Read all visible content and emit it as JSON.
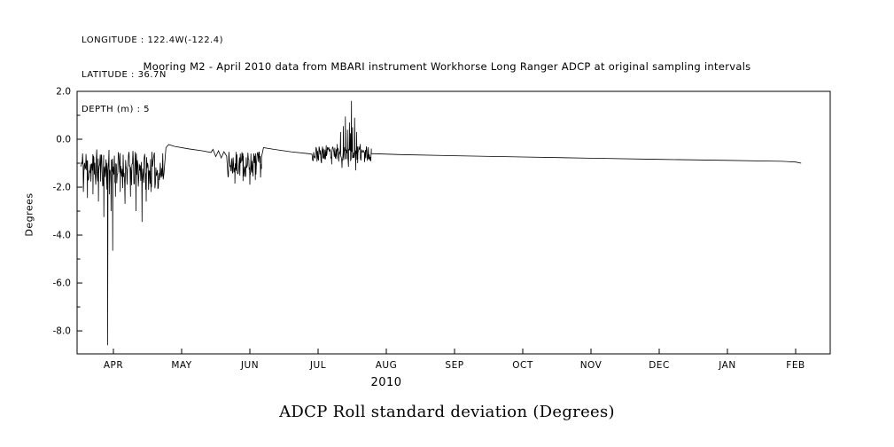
{
  "page": {
    "background": "#ffffff"
  },
  "header": {
    "longitude": "LONGITUDE : 122.4W(-122.4)",
    "latitude": "LATITUDE : 36.7N",
    "depth": "DEPTH (m) : 5"
  },
  "chart_data": {
    "type": "line",
    "title": "Mooring M2 - April 2010 data from MBARI instrument Workhorse Long Ranger ADCP at original sampling intervals",
    "caption": "ADCP Roll standard deviation (Degrees)",
    "ylabel": "Degrees",
    "year_label": "2010",
    "line_color": "#000000",
    "grid": false,
    "x_encoding": "month index, Jan 2010 = 1 through Feb 2011 = 14",
    "xlim": [
      3.4675,
      14.5065
    ],
    "ylim": [
      -8.96,
      2.0
    ],
    "xticks": {
      "values": [
        4,
        5,
        6,
        7,
        8,
        9,
        10,
        11,
        12,
        13,
        14
      ],
      "labels": [
        "APR",
        "MAY",
        "JUN",
        "JUL",
        "AUG",
        "SEP",
        "OCT",
        "NOV",
        "DEC",
        "JAN",
        "FEB"
      ]
    },
    "yticks": {
      "values": [
        2.0,
        0.0,
        -2.0,
        -4.0,
        -6.0,
        -8.0
      ],
      "labels": [
        "2.0",
        "0.0",
        "-2.0",
        "-4.0",
        "-6.0",
        "-8.0"
      ]
    },
    "y_minor_ticks": [
      1.0,
      -1.0,
      -3.0,
      -5.0,
      -7.0
    ],
    "segments": [
      {
        "type": "noise",
        "seed": 11,
        "x_start": 3.52,
        "x_end": 4.73,
        "n": 170,
        "center_start": -1.15,
        "center_end": -1.35,
        "amplitude": 0.8,
        "spikes": [
          [
            3.56,
            -2.2
          ],
          [
            3.62,
            -2.45
          ],
          [
            3.7,
            -2.3
          ],
          [
            3.78,
            -2.6
          ],
          [
            3.86,
            -3.25
          ],
          [
            3.9,
            -2.1
          ],
          [
            3.915,
            -8.6
          ],
          [
            3.94,
            -2.3
          ],
          [
            3.965,
            -3.0
          ],
          [
            3.99,
            -4.65
          ],
          [
            4.03,
            -2.4
          ],
          [
            4.1,
            -2.2
          ],
          [
            4.17,
            -2.7
          ],
          [
            4.25,
            -2.4
          ],
          [
            4.33,
            -3.0
          ],
          [
            4.42,
            -3.45
          ],
          [
            4.48,
            -2.6
          ],
          [
            4.55,
            -2.2
          ],
          [
            4.65,
            -1.9
          ]
        ]
      },
      {
        "type": "line",
        "points": [
          [
            4.74,
            -1.45
          ],
          [
            4.77,
            -0.35
          ],
          [
            4.81,
            -0.22
          ],
          [
            4.9,
            -0.3
          ],
          [
            5.1,
            -0.4
          ],
          [
            5.3,
            -0.48
          ],
          [
            5.43,
            -0.55
          ]
        ]
      },
      {
        "type": "line",
        "points": [
          [
            5.46,
            -0.42
          ],
          [
            5.5,
            -0.72
          ],
          [
            5.54,
            -0.48
          ],
          [
            5.58,
            -0.78
          ],
          [
            5.62,
            -0.52
          ],
          [
            5.66,
            -0.7
          ]
        ]
      },
      {
        "type": "noise",
        "seed": 7,
        "x_start": 5.68,
        "x_end": 6.17,
        "n": 80,
        "center_start": -1.05,
        "center_end": -1.05,
        "amplitude": 0.55,
        "spikes": [
          [
            5.78,
            -1.85
          ],
          [
            5.9,
            -1.75
          ],
          [
            6.0,
            -1.9
          ],
          [
            6.08,
            -1.7
          ]
        ]
      },
      {
        "type": "line",
        "points": [
          [
            6.17,
            -0.75
          ],
          [
            6.2,
            -0.35
          ],
          [
            6.35,
            -0.42
          ],
          [
            6.6,
            -0.52
          ],
          [
            6.85,
            -0.6
          ],
          [
            6.91,
            -0.62
          ]
        ]
      },
      {
        "type": "noise",
        "seed": 23,
        "x_start": 6.92,
        "x_end": 7.78,
        "n": 120,
        "center_start": -0.62,
        "center_end": -0.6,
        "amplitude": 0.32,
        "spikes": [
          [
            7.05,
            -1.0
          ],
          [
            7.12,
            -0.25
          ],
          [
            7.2,
            -1.05
          ],
          [
            7.28,
            -0.2
          ],
          [
            7.33,
            0.3
          ],
          [
            7.35,
            -1.2
          ],
          [
            7.37,
            0.55
          ],
          [
            7.4,
            0.95
          ],
          [
            7.415,
            -0.45
          ],
          [
            7.43,
            0.4
          ],
          [
            7.445,
            -1.15
          ],
          [
            7.46,
            0.7
          ],
          [
            7.475,
            0.25
          ],
          [
            7.49,
            1.6
          ],
          [
            7.505,
            0.5
          ],
          [
            7.52,
            -0.55
          ],
          [
            7.535,
            0.9
          ],
          [
            7.55,
            -1.3
          ],
          [
            7.565,
            0.3
          ],
          [
            7.58,
            -1.0
          ],
          [
            7.62,
            -0.2
          ],
          [
            7.68,
            -0.95
          ]
        ]
      },
      {
        "type": "line",
        "points": [
          [
            7.78,
            -0.6
          ],
          [
            8.2,
            -0.64
          ],
          [
            9.0,
            -0.69
          ],
          [
            10.0,
            -0.74
          ],
          [
            11.0,
            -0.79
          ],
          [
            12.0,
            -0.84
          ],
          [
            13.0,
            -0.88
          ],
          [
            13.8,
            -0.92
          ],
          [
            14.0,
            -0.95
          ],
          [
            14.08,
            -1.0
          ]
        ]
      }
    ]
  }
}
